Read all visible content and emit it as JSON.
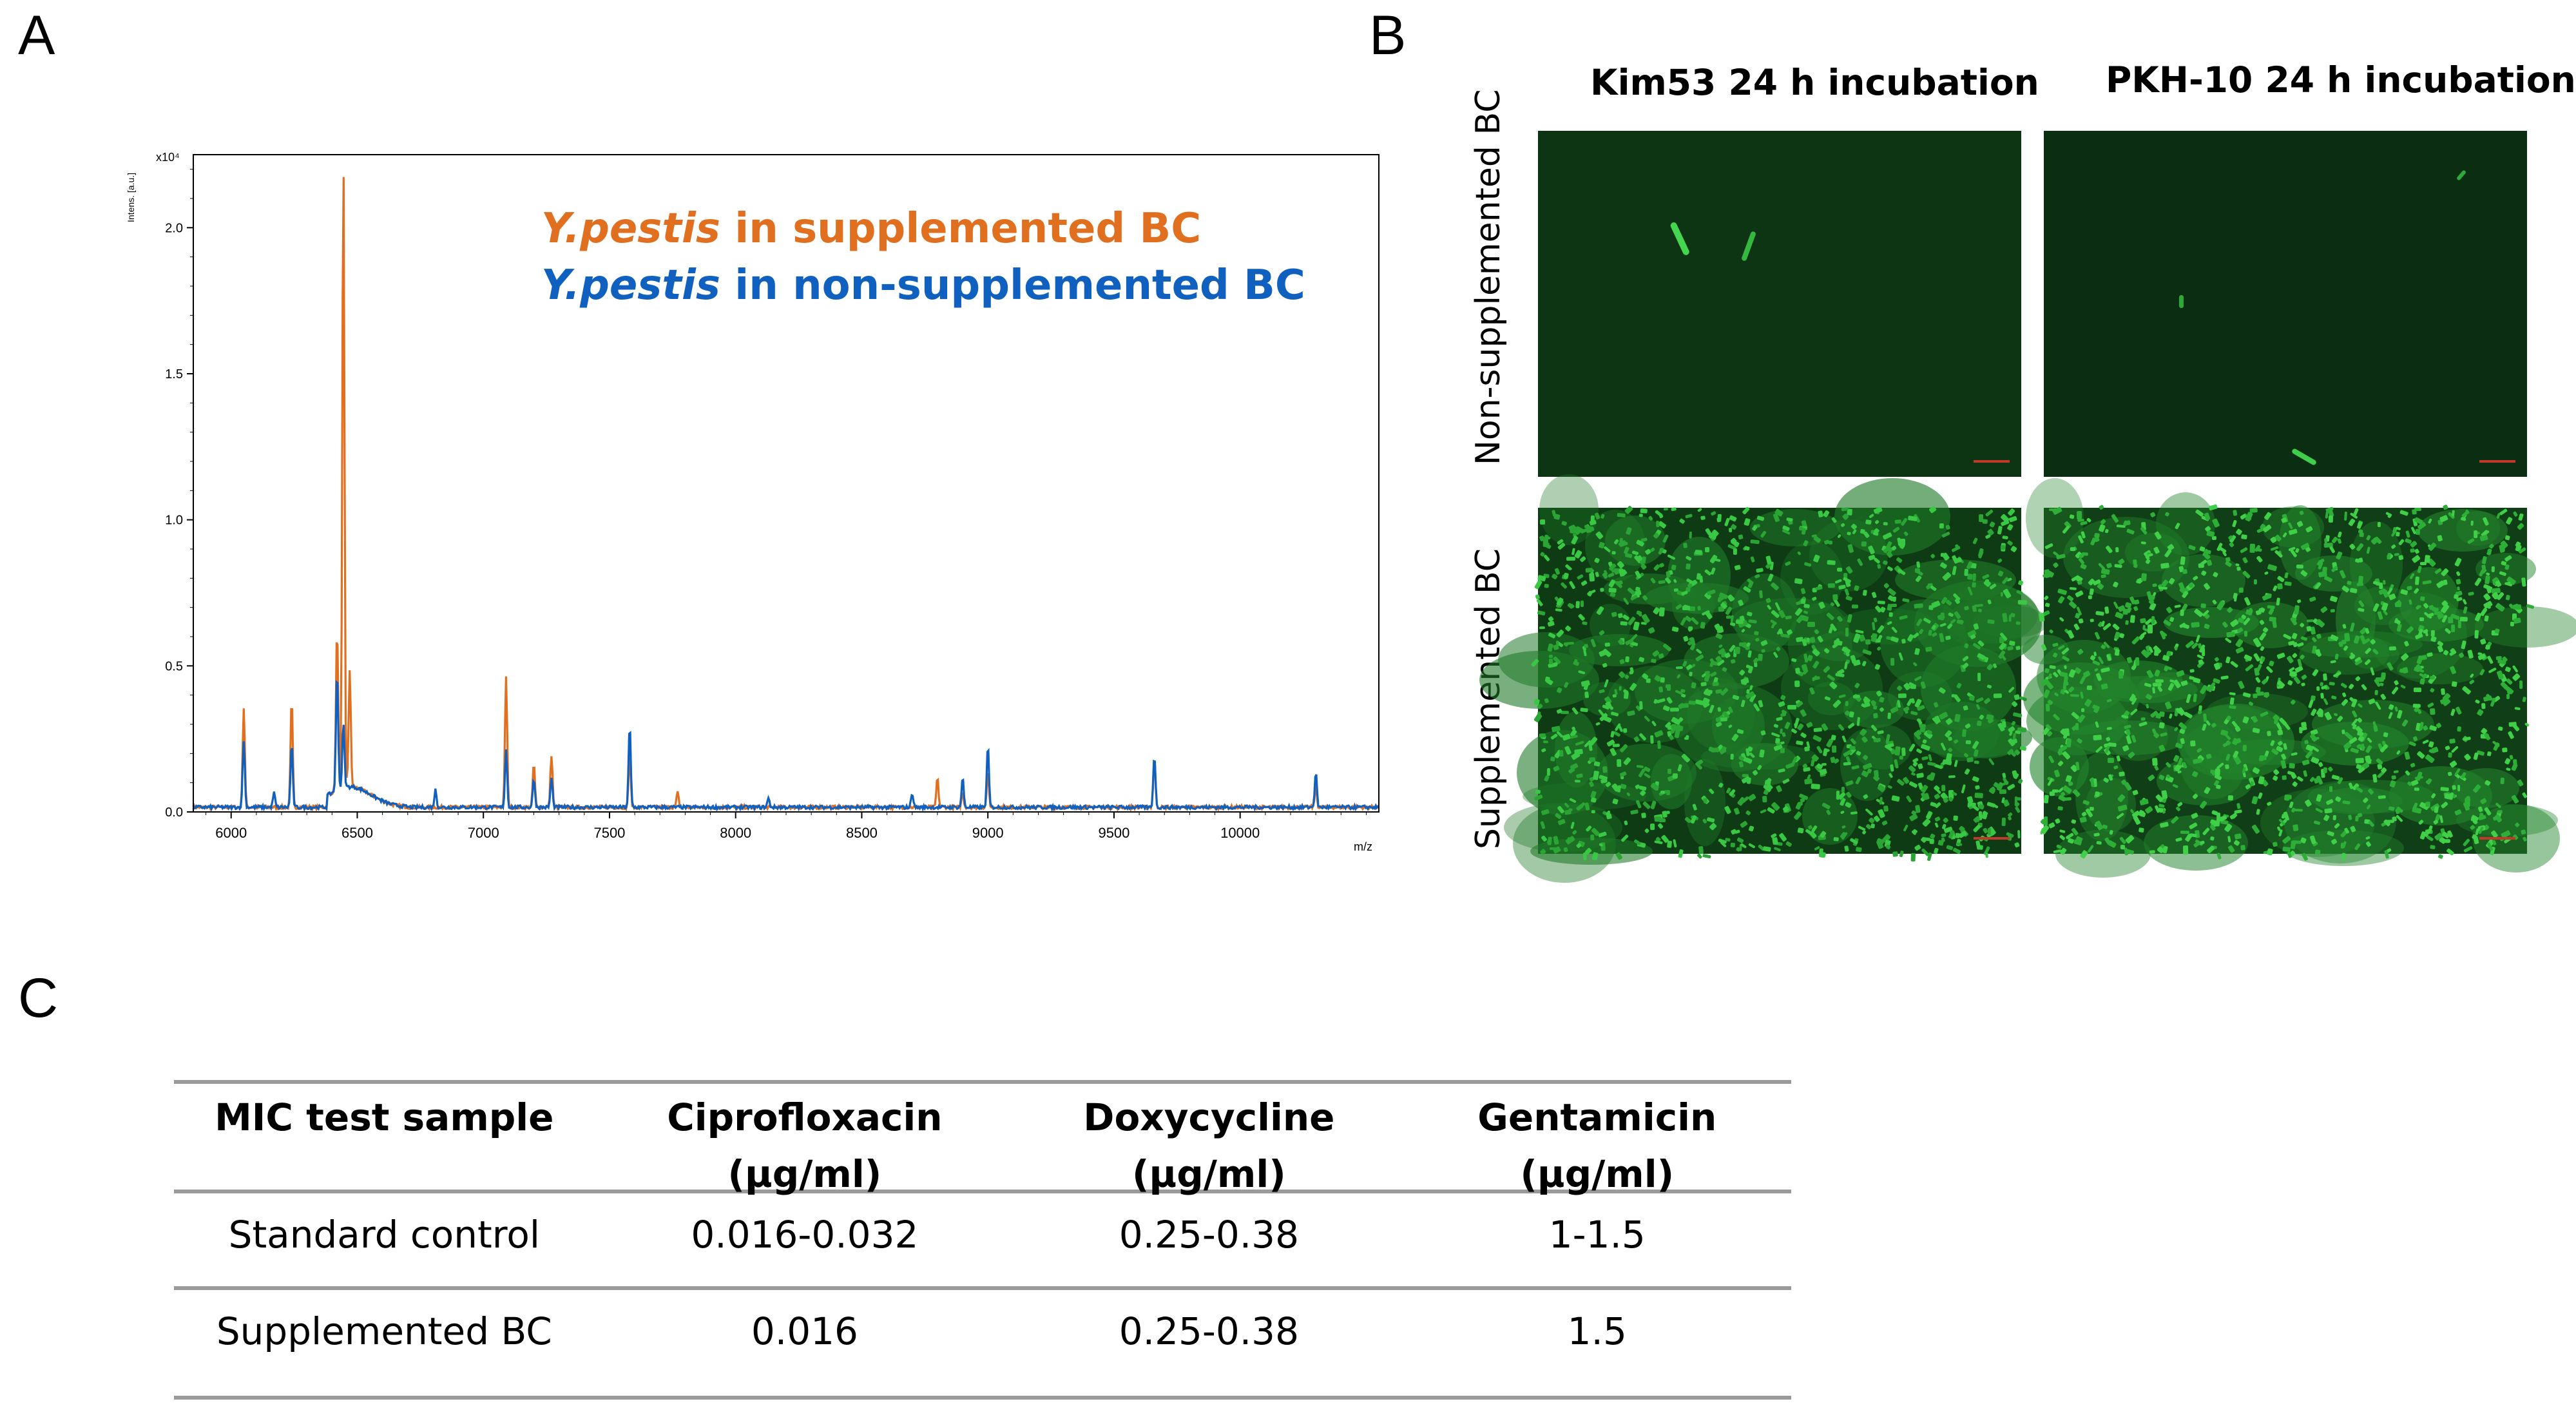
{
  "panels": {
    "a": "A",
    "b": "B",
    "c": "C"
  },
  "chart_data": {
    "type": "line",
    "xlabel": "m/z",
    "ylabel": "Intens. [a.u.]",
    "y_multiplier": "x10⁴",
    "xlim": [
      5850,
      10550
    ],
    "ylim": [
      0,
      2.25
    ],
    "x_ticks": [
      "6000",
      "6500",
      "7000",
      "7500",
      "8000",
      "8500",
      "9000",
      "9500",
      "10000"
    ],
    "y_ticks": [
      "0.0",
      "0.5",
      "1.0",
      "1.5",
      "2.0"
    ],
    "legend": [
      {
        "italic": "Y.pestis",
        "text": " in supplemented BC",
        "color": "#e07020"
      },
      {
        "italic": "Y.pestis",
        "text": " in non-supplemented BC",
        "color": "#1060c0"
      }
    ],
    "series": [
      {
        "name": "Y.pestis in supplemented BC",
        "color": "#e07020",
        "peaks": [
          [
            6050,
            0.34
          ],
          [
            6240,
            0.37
          ],
          [
            6420,
            0.56
          ],
          [
            6445,
            2.15
          ],
          [
            6470,
            0.4
          ],
          [
            7090,
            0.45
          ],
          [
            7200,
            0.15
          ],
          [
            7270,
            0.18
          ],
          [
            7580,
            0.18
          ],
          [
            7770,
            0.05
          ],
          [
            8800,
            0.1
          ],
          [
            8900,
            0.05
          ],
          [
            9000,
            0.12
          ],
          [
            9660,
            0.17
          ],
          [
            10300,
            0.07
          ]
        ]
      },
      {
        "name": "Y.pestis in non-supplemented BC",
        "color": "#1060c0",
        "peaks": [
          [
            6050,
            0.23
          ],
          [
            6170,
            0.05
          ],
          [
            6240,
            0.22
          ],
          [
            6420,
            0.41
          ],
          [
            6445,
            0.22
          ],
          [
            6810,
            0.06
          ],
          [
            7090,
            0.2
          ],
          [
            7200,
            0.1
          ],
          [
            7270,
            0.1
          ],
          [
            7580,
            0.28
          ],
          [
            8130,
            0.03
          ],
          [
            8700,
            0.05
          ],
          [
            8900,
            0.1
          ],
          [
            9000,
            0.21
          ],
          [
            9660,
            0.18
          ],
          [
            10300,
            0.12
          ]
        ]
      }
    ]
  },
  "microscopy": {
    "col_titles": [
      "Kim53 24 h incubation",
      "PKH-10 24 h incubation"
    ],
    "row_titles": [
      "Non-supplemented BC",
      "Supplemented BC"
    ]
  },
  "table": {
    "headers": [
      [
        "MIC test sample",
        ""
      ],
      [
        "Ciprofloxacin",
        "(µg/ml)"
      ],
      [
        "Doxycycline",
        "(µg/ml)"
      ],
      [
        "Gentamicin",
        "(µg/ml)"
      ]
    ],
    "rows": [
      [
        "Standard control",
        "0.016-0.032",
        "0.25-0.38",
        "1-1.5"
      ],
      [
        "Supplemented BC",
        "0.016",
        "0.25-0.38",
        "1.5"
      ]
    ]
  }
}
